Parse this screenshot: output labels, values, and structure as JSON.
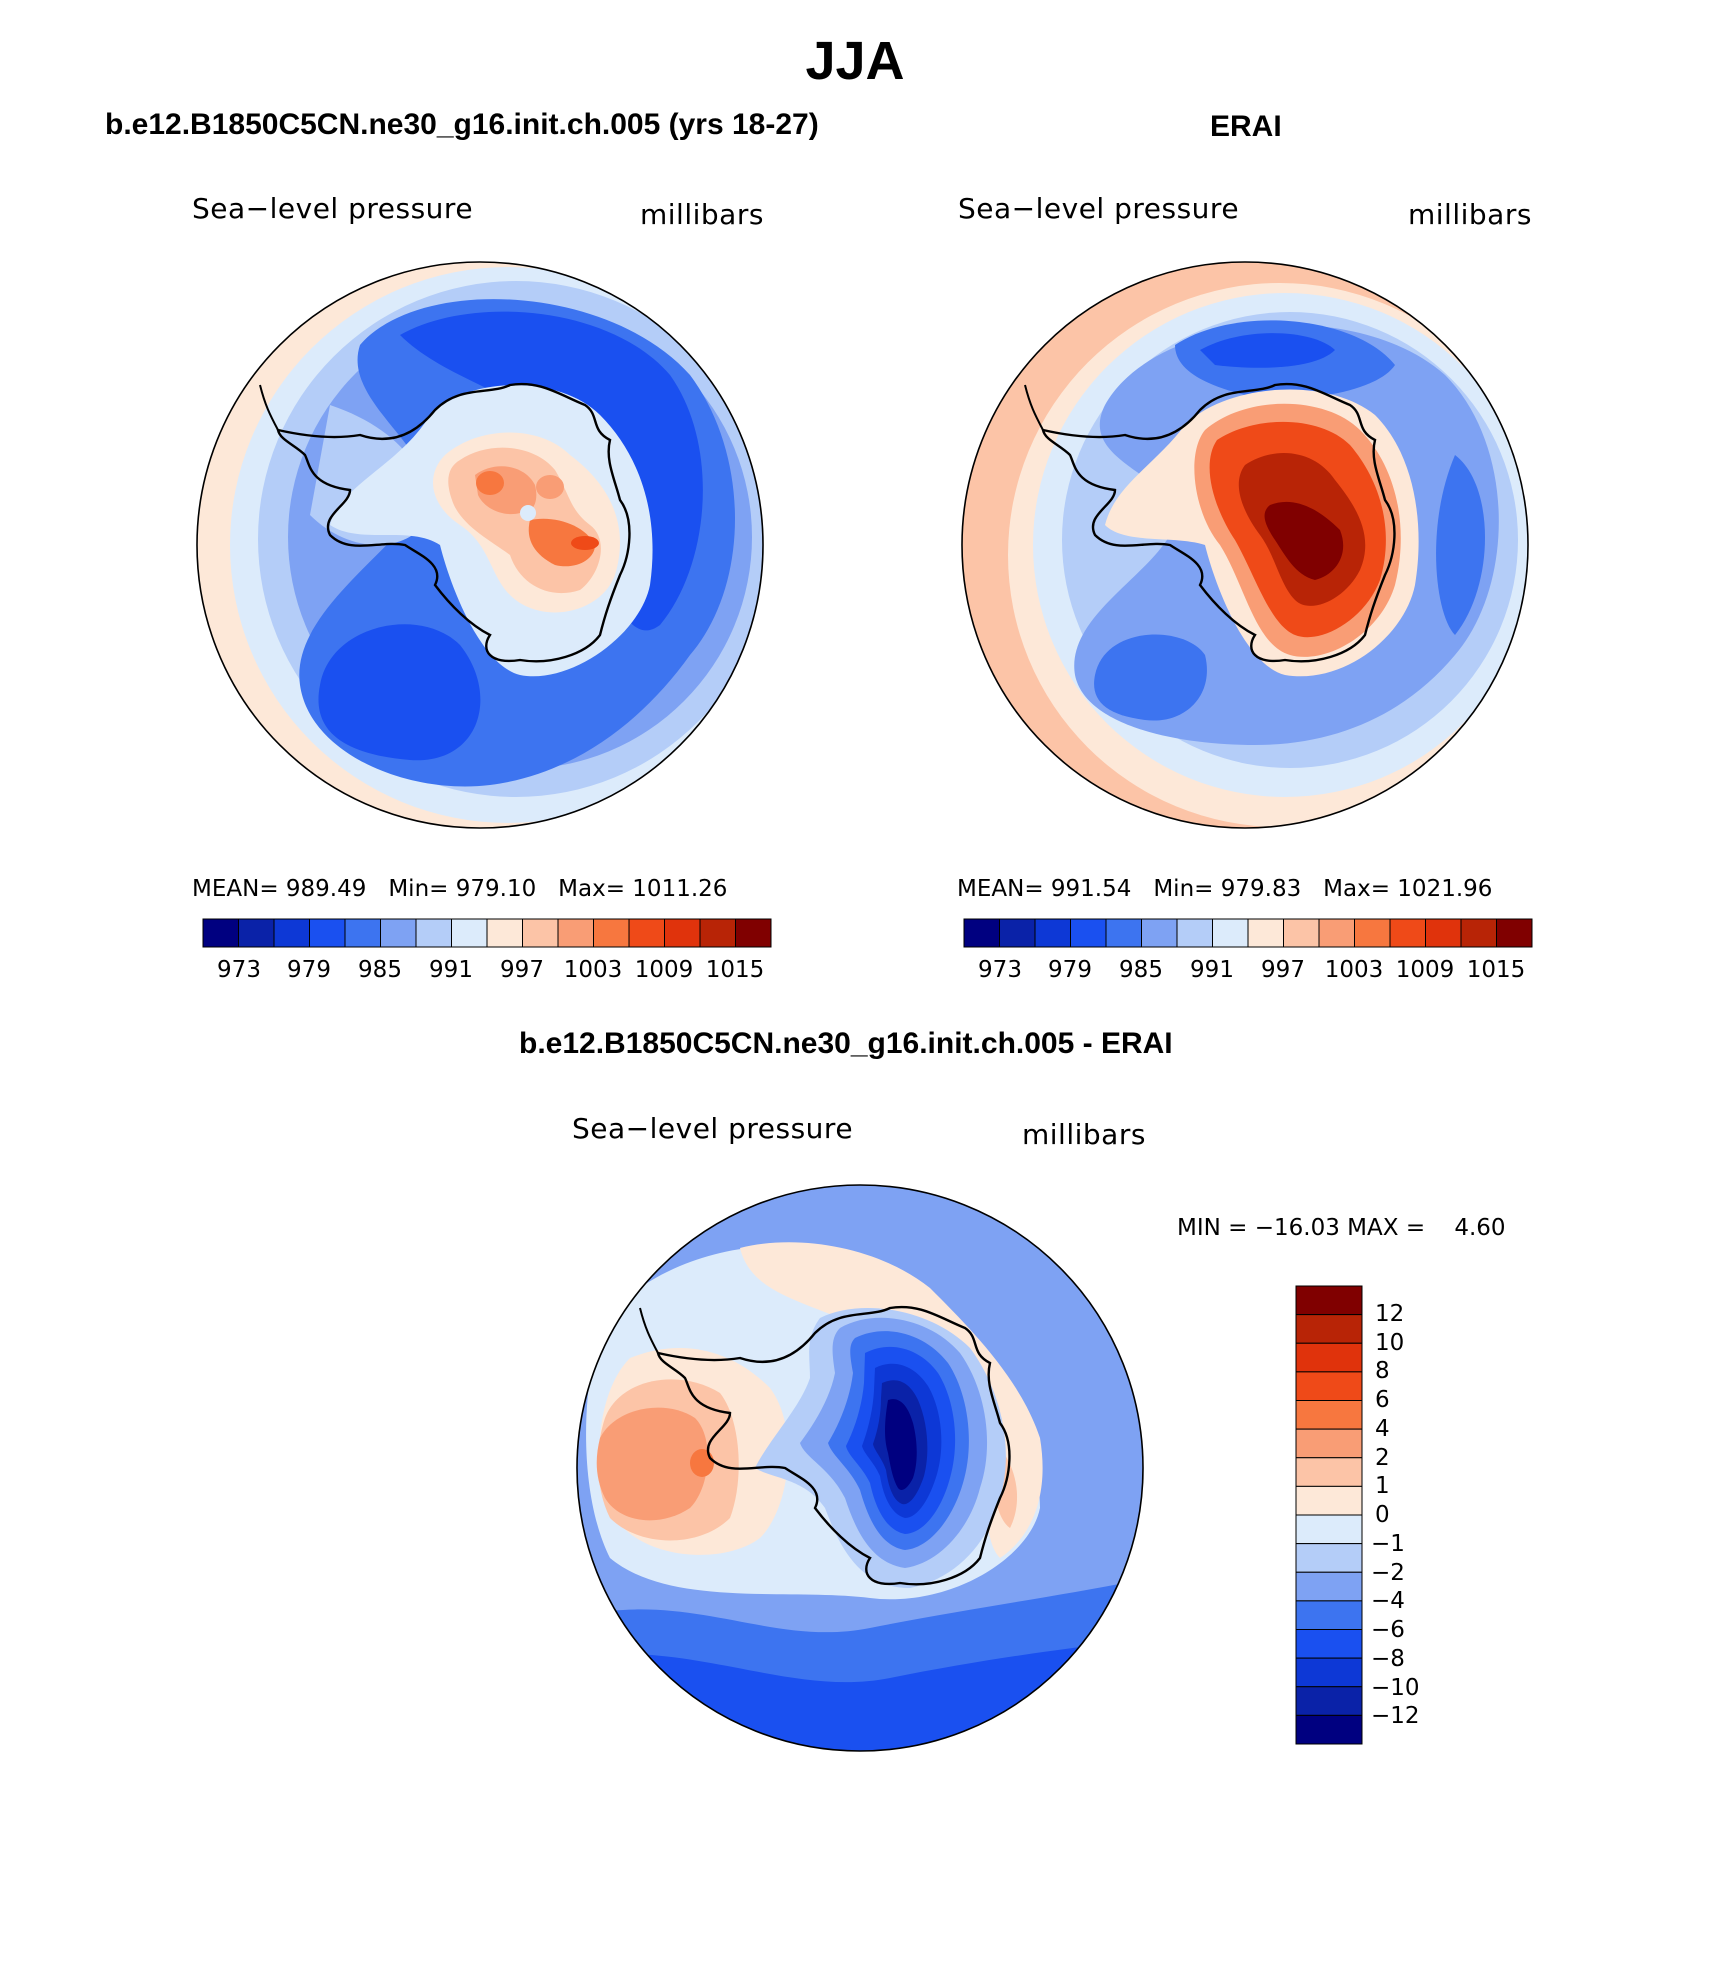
{
  "figure": {
    "title": "JJA"
  },
  "chart_data": [
    {
      "type": "contour-map",
      "projection": "south-polar-stereographic",
      "panel_title": "b.e12.B1850C5CN.ne30_g16.init.ch.005 (yrs 18-27)",
      "left_label": "Sea−level pressure",
      "right_label": "millibars",
      "stats": {
        "mean_label": "MEAN=",
        "mean": "989.49",
        "min_label": "Min=",
        "min": "979.10",
        "max_label": "Max=",
        "max": "1011.26"
      },
      "contour_levels": [
        973,
        976,
        979,
        982,
        985,
        988,
        991,
        994,
        997,
        1000,
        1003,
        1006,
        1009,
        1012,
        1015
      ],
      "colorbar_labels": [
        "973",
        "979",
        "985",
        "991",
        "997",
        "1003",
        "1009",
        "1015"
      ]
    },
    {
      "type": "contour-map",
      "projection": "south-polar-stereographic",
      "panel_title": "ERAI",
      "left_label": "Sea−level pressure",
      "right_label": "millibars",
      "stats": {
        "mean_label": "MEAN=",
        "mean": "991.54",
        "min_label": "Min=",
        "min": "979.83",
        "max_label": "Max=",
        "max": "1021.96"
      },
      "contour_levels": [
        973,
        976,
        979,
        982,
        985,
        988,
        991,
        994,
        997,
        1000,
        1003,
        1006,
        1009,
        1012,
        1015
      ],
      "colorbar_labels": [
        "973",
        "979",
        "985",
        "991",
        "997",
        "1003",
        "1009",
        "1015"
      ]
    },
    {
      "type": "contour-map",
      "projection": "south-polar-stereographic",
      "panel_title": "b.e12.B1850C5CN.ne30_g16.init.ch.005 - ERAI",
      "left_label": "Sea−level pressure",
      "right_label": "millibars",
      "stats": {
        "min_label": "MIN =",
        "min": "−16.03",
        "max_label": "MAX =",
        "max": "4.60"
      },
      "contour_levels": [
        -12,
        -10,
        -8,
        -6,
        -4,
        -2,
        -1,
        0,
        1,
        2,
        4,
        6,
        8,
        10,
        12
      ],
      "colorbar_labels": [
        "12",
        "10",
        "8",
        "6",
        "4",
        "2",
        "1",
        "0",
        "−1",
        "−2",
        "−4",
        "−6",
        "−8",
        "−10",
        "−12"
      ]
    }
  ],
  "colors": {
    "abs_scale": [
      "#000080",
      "#0a22a8",
      "#0d38d6",
      "#1a50f0",
      "#3d74f0",
      "#7ea2f3",
      "#b4cdf8",
      "#dcebfb",
      "#fde8d8",
      "#fcc4a7",
      "#f99d75",
      "#f7773f",
      "#ef4a18",
      "#e0330c",
      "#b82406",
      "#800000"
    ],
    "diff_scale_top_to_bottom": [
      "#800000",
      "#b82406",
      "#e0330c",
      "#ef4a18",
      "#f7773f",
      "#f99d75",
      "#fcc4a7",
      "#fde8d8",
      "#dcebfb",
      "#b4cdf8",
      "#7ea2f3",
      "#3d74f0",
      "#1a50f0",
      "#0d38d6",
      "#0a22a8",
      "#000080"
    ]
  }
}
